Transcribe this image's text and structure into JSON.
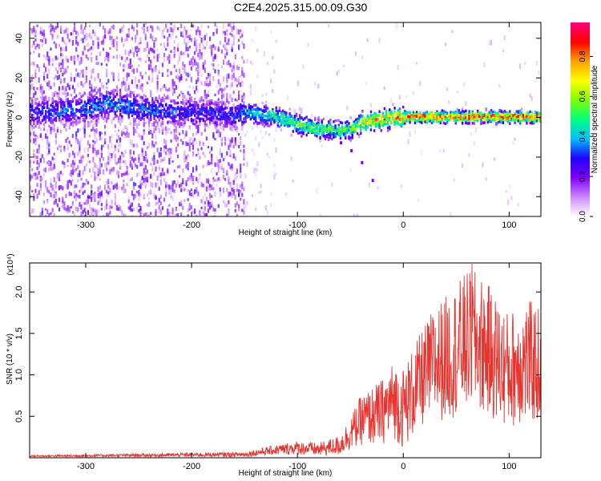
{
  "title": "C2E4.2025.315.00.09.G30",
  "chart_data": [
    {
      "type": "heatmap",
      "name": "spectrogram",
      "xlabel": "Height of straight line (km)",
      "ylabel": "Frequency (Hz)",
      "xlim": [
        -353,
        130
      ],
      "ylim": [
        -50,
        48
      ],
      "xticks": [
        -300,
        -200,
        -100,
        0,
        100
      ],
      "yticks": [
        -40,
        -20,
        0,
        20,
        40
      ],
      "colorbar": {
        "label": "Normalized spectral amplitude",
        "range": [
          0.0,
          0.97
        ],
        "ticks": [
          "0.0",
          "0.2",
          "0.4",
          "0.6",
          "0.8"
        ],
        "colors": [
          "#ffffff",
          "#cc88ff",
          "#8000ff",
          "#2000ff",
          "#00c0ff",
          "#00ff80",
          "#80ff00",
          "#ffff00",
          "#ffa000",
          "#ff0000",
          "#ff0080"
        ]
      },
      "ridge": {
        "x": [
          -353,
          -300,
          -280,
          -250,
          -200,
          -160,
          -150,
          -120,
          -100,
          -80,
          -60,
          -50,
          -40,
          -20,
          0,
          50,
          100,
          130
        ],
        "y": [
          3,
          5,
          8,
          5,
          3,
          2,
          3,
          1,
          -3,
          -5,
          -6,
          -5,
          -2,
          0,
          1,
          1,
          1,
          1
        ],
        "peak_amplitude": [
          0.35,
          0.4,
          0.45,
          0.4,
          0.35,
          0.35,
          0.45,
          0.55,
          0.6,
          0.6,
          0.55,
          0.6,
          0.7,
          0.85,
          0.9,
          0.9,
          0.9,
          0.9
        ]
      },
      "diffuse_noise_region": [
        -353,
        -150
      ],
      "tail": {
        "x": [
          -60,
          -50,
          -40,
          -30
        ],
        "y": [
          -12,
          -16,
          -22,
          -31
        ]
      }
    },
    {
      "type": "line",
      "name": "snr",
      "xlabel": "Height of straight line (km)",
      "ylabel": "SNR (10 * v/v)",
      "y_multiplier": "(x10⁴)",
      "xlim": [
        -353,
        130
      ],
      "ylim": [
        0,
        2.35
      ],
      "xticks": [
        -300,
        -200,
        -100,
        0,
        100
      ],
      "yticks": [
        0.5,
        1.0,
        1.5,
        2.0
      ],
      "line_color": "#e8332e",
      "series": [
        {
          "x": [
            -353,
            -250,
            -150,
            -130,
            -100,
            -80,
            -60,
            -50,
            -40,
            -30,
            -20,
            -10,
            0,
            10,
            20,
            30,
            40,
            50,
            60,
            70,
            80,
            90,
            100,
            110,
            120,
            130
          ],
          "y_mean": [
            0.02,
            0.03,
            0.04,
            0.08,
            0.12,
            0.1,
            0.15,
            0.3,
            0.45,
            0.5,
            0.55,
            0.7,
            0.6,
            0.8,
            1.0,
            1.15,
            1.2,
            1.3,
            1.4,
            1.4,
            1.3,
            1.15,
            1.05,
            1.15,
            1.15,
            1.1
          ],
          "y_spread": [
            0.01,
            0.02,
            0.03,
            0.05,
            0.08,
            0.08,
            0.12,
            0.2,
            0.3,
            0.35,
            0.4,
            0.45,
            0.5,
            0.55,
            0.6,
            0.7,
            0.75,
            0.8,
            0.85,
            0.85,
            0.8,
            0.75,
            0.7,
            0.75,
            0.75,
            0.7
          ],
          "y_max": 2.34,
          "y_max_x": 65
        }
      ]
    }
  ]
}
